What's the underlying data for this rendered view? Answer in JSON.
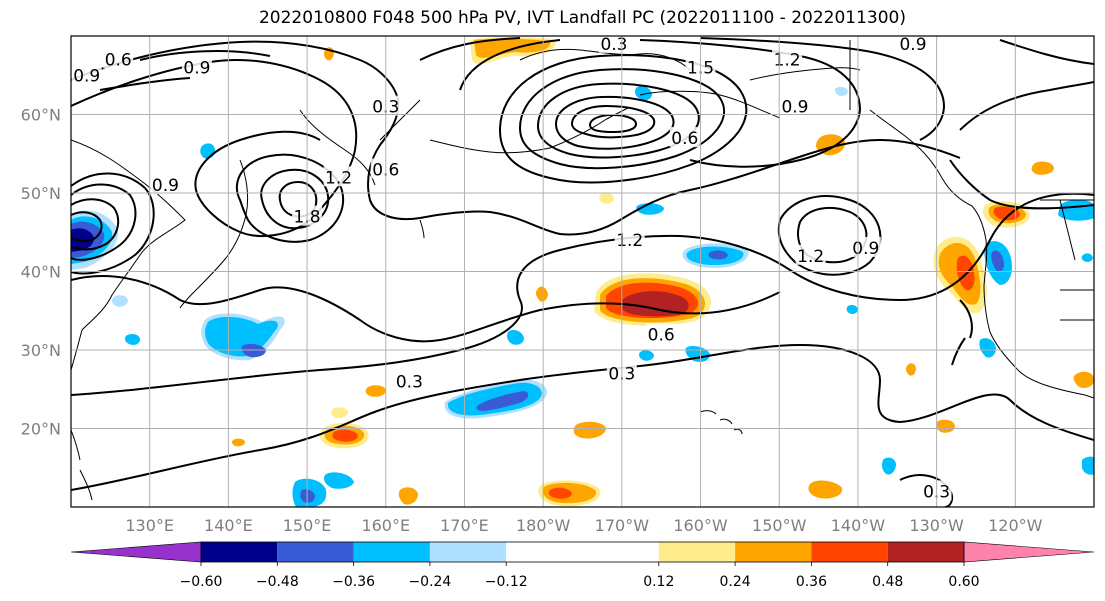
{
  "title": "2022010800 F048 500 hPa PV, IVT Landfall PC (2022011100 - 2022011300)",
  "map": {
    "lon_range": [
      120,
      250
    ],
    "lat_range": [
      10,
      70
    ],
    "lat_ticks": [
      {
        "lat": 60,
        "label": "60°N"
      },
      {
        "lat": 50,
        "label": "50°N"
      },
      {
        "lat": 40,
        "label": "40°N"
      },
      {
        "lat": 30,
        "label": "30°N"
      },
      {
        "lat": 20,
        "label": "20°N"
      }
    ],
    "lon_ticks": [
      {
        "lon": 130,
        "label": "130°E"
      },
      {
        "lon": 140,
        "label": "140°E"
      },
      {
        "lon": 150,
        "label": "150°E"
      },
      {
        "lon": 160,
        "label": "160°E"
      },
      {
        "lon": 170,
        "label": "170°E"
      },
      {
        "lon": 180,
        "label": "180°W"
      },
      {
        "lon": 190,
        "label": "170°W"
      },
      {
        "lon": 200,
        "label": "160°W"
      },
      {
        "lon": 210,
        "label": "150°W"
      },
      {
        "lon": 220,
        "label": "140°W"
      },
      {
        "lon": 230,
        "label": "130°W"
      },
      {
        "lon": 240,
        "label": "120°W"
      }
    ],
    "contour_labels": [
      {
        "text": "0.6",
        "lon": 126,
        "lat": 67
      },
      {
        "text": "0.9",
        "lon": 122,
        "lat": 65
      },
      {
        "text": "0.9",
        "lon": 136,
        "lat": 66
      },
      {
        "text": "0.3",
        "lon": 160,
        "lat": 61
      },
      {
        "text": "0.3",
        "lon": 189,
        "lat": 69
      },
      {
        "text": "1.5",
        "lon": 200,
        "lat": 66
      },
      {
        "text": "1.2",
        "lon": 211,
        "lat": 67
      },
      {
        "text": "0.9",
        "lon": 227,
        "lat": 69
      },
      {
        "text": "0.9",
        "lon": 212,
        "lat": 61
      },
      {
        "text": "0.6",
        "lon": 160,
        "lat": 53
      },
      {
        "text": "0.9",
        "lon": 132,
        "lat": 51
      },
      {
        "text": "1.2",
        "lon": 154,
        "lat": 52
      },
      {
        "text": "1.8",
        "lon": 150,
        "lat": 47
      },
      {
        "text": "0.6",
        "lon": 198,
        "lat": 57
      },
      {
        "text": "1.2",
        "lon": 191,
        "lat": 44
      },
      {
        "text": "1.2",
        "lon": 214,
        "lat": 42
      },
      {
        "text": "0.9",
        "lon": 221,
        "lat": 43
      },
      {
        "text": "0.6",
        "lon": 195,
        "lat": 32
      },
      {
        "text": "0.3",
        "lon": 163,
        "lat": 26
      },
      {
        "text": "0.3",
        "lon": 190,
        "lat": 27
      },
      {
        "text": "0.3",
        "lon": 230,
        "lat": 12
      }
    ]
  },
  "legend": {
    "levels": [
      -0.72,
      -0.6,
      -0.48,
      -0.36,
      -0.24,
      -0.12,
      0.12,
      0.24,
      0.36,
      0.48,
      0.6,
      0.72
    ],
    "tick_labels": [
      "−0.60",
      "−0.48",
      "−0.36",
      "−0.24",
      "−0.12",
      "0.12",
      "0.24",
      "0.36",
      "0.48",
      "0.60"
    ],
    "tick_values": [
      -0.6,
      -0.48,
      -0.36,
      -0.24,
      -0.12,
      0.12,
      0.24,
      0.36,
      0.48,
      0.6
    ],
    "colors": [
      "#9932cc",
      "#00008b",
      "#3a5bd6",
      "#00bfff",
      "#b0e0ff",
      "#ffffff",
      "#ffec8b",
      "#ffa500",
      "#ff4500",
      "#b22222",
      "#ff82ab"
    ]
  },
  "colors": {
    "positive_light": "#ffec8b",
    "positive_mid": "#ffa500",
    "positive_strong": "#ff4500",
    "positive_max": "#b22222",
    "negative_light": "#b0e0ff",
    "negative_mid": "#00bfff",
    "negative_strong": "#3a5bd6",
    "negative_max": "#00008b",
    "contour": "#000000",
    "grid": "#b0b0b0"
  }
}
